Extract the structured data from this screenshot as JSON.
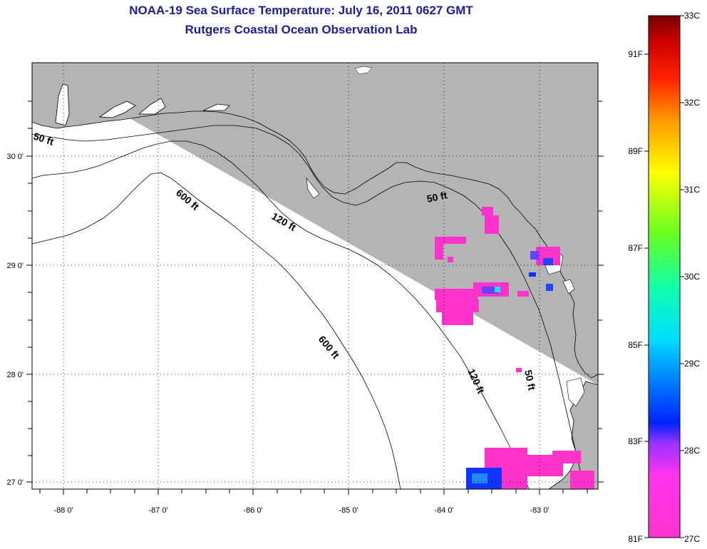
{
  "title_line1": "NOAA-19 Sea Surface Temperature:  July 16, 2011 0627 GMT",
  "title_line2": "Rutgers Coastal Ocean Observation Lab",
  "map": {
    "lon_ticks": [
      "-88 0'",
      "-87 0'",
      "-86 0'",
      "-85 0'",
      "-84 0'",
      "-83 0'"
    ],
    "lat_ticks": [
      "30 0'",
      "29 0'",
      "28 0'",
      "27 0'"
    ],
    "extent": {
      "lon_min": -88.33,
      "lon_max": -82.42,
      "lat_min": 26.97,
      "lat_max": 30.85
    },
    "grid": "dotted",
    "land_color": "#b4b4b4",
    "ocean_color": "#ffffff",
    "contour_labels": {
      "c50_west": "50 ft",
      "c50_north": "50 ft",
      "c50_south": "50 ft",
      "c120_north": "120 ft",
      "c120_south": "120 ft",
      "c600_north": "600 ft",
      "c600_south": "600 ft"
    }
  },
  "colorbar": {
    "celsius_labels": [
      "33C",
      "32C",
      "31C",
      "30C",
      "29C",
      "28C",
      "27C"
    ],
    "fahrenheit_labels": [
      "91F",
      "89F",
      "87F",
      "85F",
      "83F",
      "81F"
    ],
    "range_c": [
      27,
      33
    ],
    "colors": [
      "#ff33cc",
      "#9933ff",
      "#0022ff",
      "#00eeff",
      "#22ff55",
      "#ffff00",
      "#ff8800",
      "#ff0000",
      "#880000"
    ]
  }
}
